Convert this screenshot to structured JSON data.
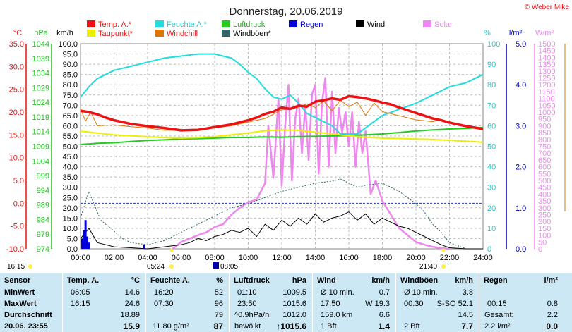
{
  "page": {
    "title": "Donnerstag, 20.06.2019",
    "copyright": "© Weber Mike",
    "colors": {
      "temp": "#ee1111",
      "humidity": "#22dddd",
      "pressure": "#22cc22",
      "rain": "#0000dd",
      "wind": "#000000",
      "solar": "#ee88ee",
      "dewpoint": "#eeee00",
      "windchill": "#dd7700",
      "gust": "#336666",
      "table_bg": "#cce8f4",
      "dashed_blue": "#2233bb"
    }
  },
  "legend": [
    {
      "label": "Temp. A.*",
      "color": "#ee1111"
    },
    {
      "label": "Feuchte A.*",
      "color": "#22dddd"
    },
    {
      "label": "Luftdruck",
      "color": "#22cc22"
    },
    {
      "label": "Regen",
      "color": "#0000dd",
      "label_color": "#0000cc"
    },
    {
      "label": "Wind",
      "color": "#000000"
    },
    {
      "label": "Solar",
      "color": "#ee88ee",
      "label_color": "#ee88ee"
    },
    {
      "label": "Taupunkt*",
      "color": "#eeee00"
    },
    {
      "label": "Windchill",
      "color": "#dd7700"
    },
    {
      "label": "Windböen*",
      "color": "#336666"
    }
  ],
  "axes": {
    "temp": {
      "unit": "°C",
      "ticks": [
        "35.0",
        "30.0",
        "25.0",
        "20.0",
        "15.0",
        "10.0",
        "5.0",
        "0.0",
        "-5.0",
        "-10.0"
      ],
      "range": [
        -10,
        35
      ],
      "color": "#ee1111"
    },
    "pressure": {
      "unit": "hPa",
      "ticks": [
        "1044",
        "1039",
        "1034",
        "1029",
        "1024",
        "1019",
        "1014",
        "1009",
        "1004",
        "999",
        "994",
        "989",
        "984",
        "979",
        "974"
      ],
      "range": [
        974,
        1044
      ],
      "color": "#22bb22"
    },
    "wind": {
      "unit": "km/h",
      "ticks": [
        "100.0",
        "95.0",
        "90.0",
        "85.0",
        "80.0",
        "75.0",
        "70.0",
        "65.0",
        "60.0",
        "55.0",
        "50.0",
        "45.0",
        "40.0",
        "35.0",
        "30.0",
        "25.0",
        "20.0",
        "15.0",
        "10.0",
        "5.0",
        "0.0"
      ],
      "range": [
        0,
        100
      ],
      "color": "#000000"
    },
    "humidity": {
      "unit": "%",
      "ticks": [
        "100",
        "90",
        "80",
        "70",
        "60",
        "50",
        "40",
        "30",
        "20",
        "10",
        "0"
      ],
      "range": [
        0,
        100
      ],
      "color": "#22cccc"
    },
    "rain": {
      "unit": "l/m²",
      "ticks": [
        "5.0",
        "4.0",
        "3.0",
        "2.0",
        "1.0",
        "0.0"
      ],
      "range": [
        0,
        5
      ],
      "color": "#0000bb"
    },
    "solar": {
      "unit": "W/m²",
      "ticks": [
        "1500",
        "1450",
        "1400",
        "1350",
        "1300",
        "1250",
        "1200",
        "1150",
        "1100",
        "1050",
        "1000",
        "950",
        "900",
        "850",
        "800",
        "750",
        "700",
        "650",
        "600",
        "550",
        "500",
        "450",
        "400",
        "350",
        "300",
        "250",
        "200",
        "150",
        "100",
        "50",
        "0"
      ],
      "range": [
        0,
        1500
      ],
      "color": "#ee88ee"
    },
    "time": {
      "ticks": [
        "00:00",
        "02:00",
        "04:00",
        "06:00",
        "08:00",
        "10:00",
        "12:00",
        "14:00",
        "16:00",
        "18:00",
        "20:00",
        "22:00",
        "24:00"
      ],
      "range": [
        0,
        24
      ]
    }
  },
  "sun_moon": {
    "moonset": "05:24",
    "sunrise": "08:05",
    "sunset": "21:40",
    "moonrise_left": "16:15"
  },
  "chart_data": {
    "type": "line",
    "title": "Donnerstag, 20.06.2019",
    "x_unit": "hours",
    "xlim": [
      0,
      24
    ],
    "series": [
      {
        "name": "Temp. A.*",
        "axis": "temp",
        "x": [
          0,
          0.5,
          1,
          1.5,
          2,
          3,
          4,
          5,
          6,
          7,
          8,
          9,
          10,
          10.5,
          11,
          11.5,
          12,
          12.5,
          13,
          13.5,
          14,
          14.5,
          15,
          15.5,
          16,
          16.5,
          17,
          17.5,
          18,
          18.5,
          19,
          19.5,
          20,
          20.5,
          21,
          21.5,
          22,
          22.5,
          23,
          23.5,
          24
        ],
        "y": [
          20.3,
          20,
          19.5,
          18.8,
          18.2,
          17.4,
          16.9,
          16.5,
          16,
          16.1,
          16.7,
          17.3,
          18.2,
          18.8,
          19.6,
          20.1,
          21,
          20.7,
          21.4,
          21.2,
          22.3,
          22.6,
          23,
          22.7,
          23.5,
          23.3,
          23,
          22.6,
          22.1,
          21.7,
          21,
          20.4,
          19.8,
          19.2,
          18.6,
          18.2,
          17.7,
          17.3,
          16.9,
          16.6,
          16.3
        ]
      },
      {
        "name": "Feuchte A.*",
        "axis": "humidity",
        "x": [
          0,
          0.5,
          1,
          1.5,
          2,
          3,
          4,
          5,
          6,
          7,
          8,
          8.5,
          9,
          9.5,
          10,
          10.5,
          11,
          11.5,
          12,
          12.5,
          13,
          13.5,
          14,
          14.5,
          15,
          15.5,
          16,
          16.5,
          17,
          17.5,
          18,
          19,
          20,
          21,
          22,
          23,
          24
        ],
        "y": [
          74,
          79,
          83,
          85,
          87,
          89,
          91,
          93,
          94,
          95,
          95,
          94,
          93,
          90,
          86,
          83,
          78,
          74,
          73,
          75,
          71,
          66,
          64,
          62,
          60,
          56,
          56,
          56,
          59,
          62,
          65,
          68,
          71,
          75,
          79,
          81,
          85
        ]
      },
      {
        "name": "Luftdruck",
        "axis": "pressure",
        "x": [
          0,
          1,
          2,
          3,
          4,
          5,
          6,
          7,
          8,
          9,
          10,
          11,
          12,
          13,
          14,
          15,
          16,
          17,
          18,
          19,
          20,
          21,
          22,
          23,
          24
        ],
        "y": [
          1009.6,
          1010,
          1010.2,
          1010.6,
          1011,
          1011.2,
          1011.5,
          1011.6,
          1011.8,
          1012,
          1012,
          1012.2,
          1012.1,
          1012.3,
          1012.4,
          1012.5,
          1012.6,
          1012.9,
          1013.2,
          1013.7,
          1014.2,
          1014.6,
          1014.9,
          1015.1,
          1015.4
        ]
      },
      {
        "name": "Taupunkt*",
        "axis": "temp",
        "x": [
          0,
          1,
          2,
          3,
          4,
          5,
          6,
          7,
          8,
          9,
          10,
          11,
          12,
          13,
          14,
          15,
          16,
          17,
          18,
          19,
          20,
          21,
          22,
          23,
          24
        ],
        "y": [
          15.8,
          15.4,
          15,
          14.8,
          14.6,
          14.4,
          14.3,
          14.4,
          14.6,
          15,
          15.4,
          15.9,
          16.1,
          16,
          15.6,
          15.2,
          14.8,
          14.5,
          14.3,
          14.2,
          14.1,
          14,
          13.8,
          13.6,
          13.4
        ]
      },
      {
        "name": "Windchill",
        "axis": "temp",
        "x": [
          0,
          0.3,
          0.6,
          1,
          2,
          3,
          4,
          5,
          6,
          7,
          8,
          9,
          10,
          11,
          11.5,
          12,
          12.5,
          13,
          13.5,
          14,
          14.5,
          15,
          15.5,
          16,
          16.5,
          17,
          17.5,
          18,
          19,
          20,
          21,
          21.5,
          22,
          23,
          24
        ],
        "y": [
          20.8,
          18,
          20,
          17,
          17.2,
          16.8,
          16.5,
          16,
          16,
          16.2,
          16.5,
          17,
          17.8,
          18.6,
          19.5,
          20.5,
          20.6,
          21.1,
          21.8,
          21,
          22.4,
          20.3,
          22.6,
          21.2,
          22.2,
          19.3,
          22,
          20.1,
          19.2,
          18.3,
          17.9,
          18.4,
          17.7,
          16.9,
          16.3
        ]
      },
      {
        "name": "Wind",
        "axis": "wind",
        "x": [
          0,
          0.5,
          1,
          1.5,
          2,
          3,
          4,
          5,
          6,
          6.5,
          7,
          7.5,
          8,
          8.5,
          9,
          9.5,
          10,
          10.5,
          11,
          11.5,
          12,
          12.5,
          13,
          13.5,
          14,
          14.5,
          15,
          15.5,
          16,
          16.5,
          17,
          17.5,
          18,
          18.5,
          19,
          19.5,
          20,
          20.5,
          21,
          21.5,
          22,
          23,
          24
        ],
        "y": [
          5,
          10,
          3,
          2,
          1,
          0.5,
          0,
          1,
          2,
          3,
          5,
          4,
          6,
          7,
          9,
          8,
          10,
          6,
          12,
          9,
          14,
          11,
          15,
          12,
          17,
          13,
          15,
          16,
          18,
          14,
          17,
          12,
          15,
          13,
          11,
          10,
          8,
          6,
          4,
          2,
          0.5,
          0,
          0
        ]
      },
      {
        "name": "Windböen*",
        "axis": "wind",
        "x": [
          0,
          0.5,
          0.8,
          1.2,
          1.8,
          2.5,
          3,
          4,
          5,
          6,
          7,
          8,
          9,
          10,
          11,
          12,
          13,
          14,
          15,
          15.5,
          16,
          16.5,
          17,
          18,
          19,
          19.5,
          20,
          20.5,
          21,
          21.5,
          22,
          23,
          24
        ],
        "y": [
          15,
          28,
          22,
          14,
          10,
          5,
          3,
          2,
          4,
          8,
          12,
          16,
          20,
          22,
          25,
          28,
          30,
          32,
          33,
          34,
          32,
          30,
          31,
          32,
          28,
          25,
          22,
          18,
          12,
          8,
          3,
          0,
          0
        ]
      },
      {
        "name": "Solar",
        "axis": "solar",
        "x": [
          5.5,
          6,
          7,
          7.5,
          8,
          8.5,
          9,
          9.5,
          10,
          10.5,
          11,
          11.2,
          11.5,
          11.8,
          12,
          12.2,
          12.4,
          12.6,
          12.8,
          13,
          13.2,
          13.4,
          13.6,
          13.8,
          14,
          14.2,
          14.4,
          14.6,
          14.8,
          15,
          15.2,
          15.4,
          15.6,
          15.8,
          16,
          16.2,
          16.4,
          16.6,
          16.8,
          17,
          17.3,
          17.6,
          18,
          18.5,
          19,
          19.5,
          20,
          20.5,
          21,
          21.5,
          22
        ],
        "y": [
          0,
          50,
          100,
          120,
          160,
          180,
          250,
          300,
          340,
          360,
          480,
          900,
          520,
          1100,
          460,
          900,
          1200,
          500,
          950,
          1100,
          700,
          1050,
          650,
          1130,
          1200,
          550,
          1070,
          1250,
          600,
          1150,
          700,
          1030,
          850,
          1000,
          750,
          1000,
          600,
          930,
          700,
          860,
          400,
          500,
          350,
          250,
          150,
          100,
          50,
          30,
          15,
          5,
          0
        ]
      },
      {
        "name": "Regen",
        "axis": "rain",
        "bars": [
          [
            0.1,
            0.25
          ],
          [
            0.2,
            0.45
          ],
          [
            0.3,
            0.7
          ],
          [
            0.4,
            0.3
          ],
          [
            0.5,
            0.15
          ],
          [
            3.8,
            0.1
          ]
        ]
      }
    ]
  },
  "stats": {
    "headers": [
      "Sensor",
      "Temp. A.",
      "°C",
      "Feuchte A.",
      "%",
      "Luftdruck",
      "hPa",
      "Wind",
      "km/h",
      "Windböen",
      "km/h",
      "Regen",
      "l/m²"
    ],
    "rows": [
      [
        "MinWert",
        "06:05",
        "14.6",
        "16:20",
        "52",
        "01:10",
        "1009.5",
        "Ø 10 min.",
        "0.7",
        "Ø 10 min.",
        "3.8",
        "",
        ""
      ],
      [
        "MaxWert",
        "16:15",
        "24.6",
        "07:30",
        "96",
        "23:50",
        "1015.6",
        "17:50",
        "W 19.3",
        "00:30",
        "S-SO 52.1",
        "00:15",
        "0.8"
      ],
      [
        "Durchschnitt",
        "",
        "18.89",
        "",
        "79",
        "^0.9hPa/h",
        "1012.0",
        "159.0 km",
        "6.6",
        "",
        "14.5",
        "Gesamt:",
        "2.2"
      ],
      [
        "20.06. 23:55",
        "",
        "15.9",
        "11.80 g/m²",
        "87",
        "bewölkt",
        "↑1015.6",
        "1 Bft",
        "1.4",
        "2 Bft",
        "7.7",
        "2.2 l/m²",
        "0.0"
      ]
    ]
  }
}
